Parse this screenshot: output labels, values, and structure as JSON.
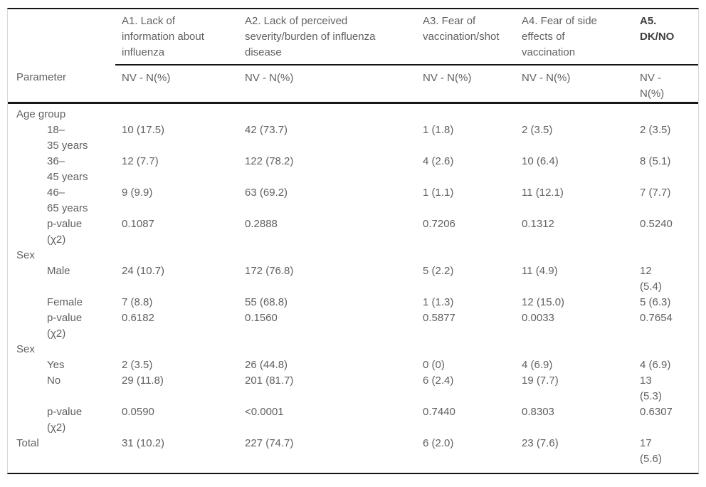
{
  "table": {
    "corner_label": "Parameter",
    "columns": [
      {
        "title": "A1. Lack of\ninformation about\ninfluenza",
        "subtitle": "NV - N(%)"
      },
      {
        "title": "A2. Lack of perceived\nseverity/burden of influenza\ndisease",
        "subtitle": "NV - N(%)"
      },
      {
        "title": "A3. Fear of\nvaccination/shot",
        "subtitle": "NV - N(%)"
      },
      {
        "title": "A4. Fear of side\neffects of\nvaccination",
        "subtitle": "NV - N(%)"
      },
      {
        "title": "A5.\nDK/NO",
        "subtitle": "NV -\nN(%)"
      }
    ],
    "sections": [
      {
        "label": "Age group",
        "values": null,
        "rows": [
          {
            "label": "18–\n35 years",
            "values": [
              "10 (17.5)",
              "42 (73.7)",
              "1 (1.8)",
              "2 (3.5)",
              "2 (3.5)"
            ]
          },
          {
            "label": "36–\n45 years",
            "values": [
              "12 (7.7)",
              "122 (78.2)",
              "4 (2.6)",
              "10 (6.4)",
              "8 (5.1)"
            ]
          },
          {
            "label": "46–\n65 years",
            "values": [
              "9 (9.9)",
              "63 (69.2)",
              "1 (1.1)",
              "11 (12.1)",
              "7 (7.7)"
            ]
          },
          {
            "label": "p-value\n(χ2)",
            "values": [
              "0.1087",
              "0.2888",
              "0.7206",
              "0.1312",
              "0.5240"
            ]
          }
        ]
      },
      {
        "label": "Sex",
        "values": null,
        "rows": [
          {
            "label": "Male",
            "values": [
              "24 (10.7)",
              "172 (76.8)",
              "5 (2.2)",
              "11 (4.9)",
              "12\n(5.4)"
            ]
          },
          {
            "label": "Female",
            "values": [
              "7 (8.8)",
              "55 (68.8)",
              "1 (1.3)",
              "12 (15.0)",
              "5 (6.3)"
            ]
          },
          {
            "label": "p-value\n(χ2)",
            "values": [
              "0.6182",
              "0.1560",
              "0.5877",
              "0.0033",
              "0.7654"
            ]
          }
        ]
      },
      {
        "label": "Sex",
        "values": null,
        "rows": [
          {
            "label": "Yes",
            "values": [
              "2 (3.5)",
              "26 (44.8)",
              "0 (0)",
              "4 (6.9)",
              "4 (6.9)"
            ]
          },
          {
            "label": "No",
            "values": [
              "29 (11.8)",
              "201 (81.7)",
              "6 (2.4)",
              "19 (7.7)",
              "13\n(5.3)"
            ]
          },
          {
            "label": "p-value\n(χ2)",
            "values": [
              "0.0590",
              "<0.0001",
              "0.7440",
              "0.8303",
              "0.6307"
            ]
          }
        ]
      },
      {
        "label": "Total",
        "values": [
          "31 (10.2)",
          "227 (74.7)",
          "6 (2.0)",
          "23 (7.6)",
          "17\n(5.6)"
        ],
        "rows": []
      }
    ]
  }
}
